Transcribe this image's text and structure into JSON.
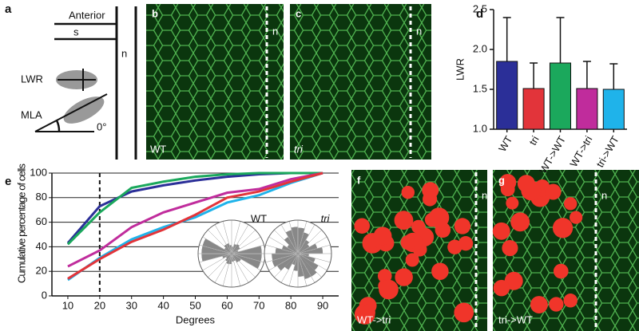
{
  "panels": {
    "a": {
      "label": "a",
      "anterior": "Anterior",
      "s": "s",
      "n": "n",
      "lwr": "LWR",
      "mla": "MLA",
      "zero": "0°"
    },
    "b": {
      "label": "b",
      "n": "n",
      "genotype": "WT"
    },
    "c": {
      "label": "c",
      "n": "n",
      "genotype": "tri"
    },
    "f": {
      "label": "f",
      "n": "n",
      "genotype": "WT->tri"
    },
    "g": {
      "label": "g",
      "n": "n",
      "genotype": "tri->WT"
    }
  },
  "chart_data": [
    {
      "type": "bar",
      "panel_label": "d",
      "y_label": "LWR",
      "categories": [
        "WT",
        "tri",
        "WT->WT",
        "WT->tri",
        "tri->WT"
      ],
      "values": [
        1.85,
        1.51,
        1.83,
        1.51,
        1.5
      ],
      "errors": [
        0.55,
        0.32,
        0.57,
        0.34,
        0.32
      ],
      "colors": [
        "#2b2f98",
        "#e2343a",
        "#1ba85c",
        "#c02c9c",
        "#1fb3ea"
      ],
      "ylim": [
        1.0,
        2.5
      ],
      "yticks": [
        {
          "value": 1.0,
          "label": "1.0"
        },
        {
          "value": 1.5,
          "label": "1.5"
        },
        {
          "value": 2.0,
          "label": "2.0"
        },
        {
          "value": 2.5,
          "label": "2.5"
        }
      ]
    },
    {
      "type": "line",
      "panel_label": "e",
      "y_label": "Cumulative percentage of cells",
      "x_label": "Degrees",
      "x": [
        10,
        20,
        30,
        40,
        50,
        60,
        70,
        80,
        90
      ],
      "series": [
        {
          "color": "#2b2f98",
          "values": [
            43,
            73,
            85,
            90,
            94,
            97,
            99,
            100,
            100
          ]
        },
        {
          "color": "#1ba85c",
          "values": [
            42,
            68,
            88,
            93,
            97,
            99,
            100,
            100,
            100
          ]
        },
        {
          "color": "#c02c9c",
          "values": [
            24,
            37,
            56,
            68,
            76,
            84,
            87,
            95,
            100
          ]
        },
        {
          "color": "#1fb3ea",
          "values": [
            13,
            31,
            46,
            56,
            64,
            76,
            82,
            92,
            100
          ]
        },
        {
          "color": "#e2343a",
          "values": [
            14,
            30,
            44,
            54,
            66,
            80,
            85,
            93,
            100
          ]
        }
      ],
      "xlim": [
        5,
        95
      ],
      "ylim": [
        0,
        100
      ],
      "xticks": [
        10,
        20,
        30,
        40,
        50,
        60,
        70,
        80,
        90
      ],
      "yticks": [
        0,
        20,
        40,
        60,
        80,
        100
      ],
      "grid": true,
      "reference_x": 20,
      "rose_labels": [
        {
          "text": "WT",
          "color": "#2b2f98"
        },
        {
          "text": "tri",
          "color": "#e2343a"
        }
      ]
    }
  ]
}
